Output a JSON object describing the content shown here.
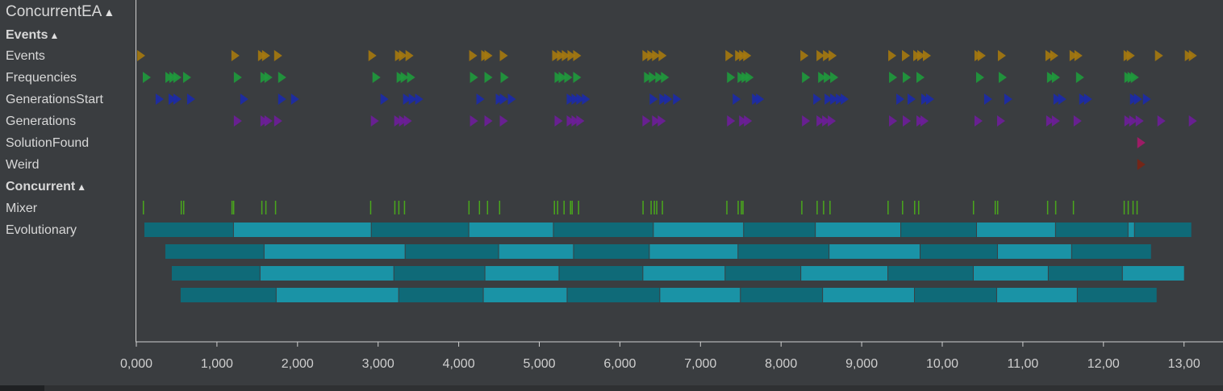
{
  "rows": [
    {
      "label": "ConcurrentEA",
      "collapse": "▲",
      "kind": "root"
    },
    {
      "label": "Events",
      "collapse": "▲",
      "kind": "group"
    },
    {
      "label": "Events",
      "kind": "track"
    },
    {
      "label": "Frequencies",
      "kind": "track"
    },
    {
      "label": "GenerationsStart",
      "kind": "track"
    },
    {
      "label": "Generations",
      "kind": "track"
    },
    {
      "label": "SolutionFound",
      "kind": "track"
    },
    {
      "label": "Weird",
      "kind": "track"
    },
    {
      "label": "Concurrent",
      "collapse": "▲",
      "kind": "group"
    },
    {
      "label": "Mixer",
      "kind": "track"
    },
    {
      "label": "Evolutionary",
      "kind": "track"
    }
  ],
  "colors": {
    "events": "#a6790e",
    "frequencies": "#1f9a3c",
    "generations_start": "#1c2aa8",
    "generations": "#6e1d9a",
    "solution_found": "#a8186a",
    "weird": "#7a2414",
    "mixer": "#4aa81c",
    "bar_dark": "#0f6a78",
    "bar_light": "#1a93a6"
  },
  "chart_data": {
    "type": "timeline",
    "x_range": [
      0,
      13.25
    ],
    "x_ticks": [
      {
        "value": 0,
        "label": "0,000"
      },
      {
        "value": 1,
        "label": "1,000"
      },
      {
        "value": 2,
        "label": "2,000"
      },
      {
        "value": 3,
        "label": "3,000"
      },
      {
        "value": 4,
        "label": "4,000"
      },
      {
        "value": 5,
        "label": "5,000"
      },
      {
        "value": 6,
        "label": "6,000"
      },
      {
        "value": 7,
        "label": "7,000"
      },
      {
        "value": 8,
        "label": "8,000"
      },
      {
        "value": 9,
        "label": "9,000"
      },
      {
        "value": 10,
        "label": "10,00"
      },
      {
        "value": 11,
        "label": "11,00"
      },
      {
        "value": 12,
        "label": "12,00"
      },
      {
        "value": 13,
        "label": "13,00"
      }
    ],
    "events": {
      "Events": [
        0.05,
        1.22,
        1.55,
        1.6,
        1.75,
        2.92,
        3.25,
        3.3,
        3.38,
        4.17,
        4.32,
        4.36,
        4.55,
        5.2,
        5.26,
        5.32,
        5.39,
        5.46,
        6.32,
        6.38,
        6.44,
        6.52,
        7.35,
        7.47,
        7.52,
        7.57,
        8.28,
        8.48,
        8.56,
        8.63,
        9.37,
        9.54,
        9.68,
        9.73,
        9.8,
        10.44,
        10.48,
        10.73,
        11.32,
        11.38,
        11.62,
        11.68,
        12.29,
        12.33,
        12.68,
        13.05,
        13.1
      ],
      "Frequencies": [
        0.12,
        0.4,
        0.45,
        0.5,
        0.62,
        1.25,
        1.58,
        1.63,
        1.8,
        2.97,
        3.27,
        3.32,
        3.4,
        4.18,
        4.36,
        4.56,
        5.23,
        5.28,
        5.35,
        5.46,
        6.34,
        6.4,
        6.48,
        6.55,
        7.37,
        7.5,
        7.55,
        7.6,
        8.3,
        8.5,
        8.57,
        8.65,
        9.38,
        9.55,
        9.72,
        10.46,
        10.74,
        11.34,
        11.4,
        11.7,
        12.3,
        12.34,
        12.38
      ],
      "GenerationsStart": [
        0.28,
        0.44,
        0.5,
        0.67,
        1.33,
        1.8,
        1.96,
        3.07,
        3.35,
        3.42,
        3.5,
        4.26,
        4.5,
        4.55,
        4.65,
        5.38,
        5.44,
        5.5,
        5.57,
        6.41,
        6.53,
        6.59,
        6.7,
        7.44,
        7.68,
        7.73,
        8.44,
        8.58,
        8.65,
        8.72,
        8.78,
        9.47,
        9.61,
        9.78,
        9.84,
        10.56,
        10.81,
        11.42,
        11.48,
        11.74,
        11.8,
        12.37,
        12.42,
        12.53
      ],
      "Generations": [
        1.25,
        1.58,
        1.63,
        1.75,
        2.95,
        3.24,
        3.3,
        3.36,
        4.18,
        4.36,
        4.55,
        5.23,
        5.38,
        5.44,
        5.5,
        6.32,
        6.44,
        6.51,
        7.37,
        7.52,
        7.58,
        8.3,
        8.48,
        8.55,
        8.62,
        9.38,
        9.55,
        9.72,
        9.77,
        10.44,
        10.72,
        11.33,
        11.4,
        11.67,
        12.3,
        12.36,
        12.44,
        12.71,
        13.1
      ],
      "SolutionFound": [
        12.46
      ],
      "Weird": [
        12.46
      ]
    },
    "mixer": [
      0.08,
      0.55,
      0.58,
      1.18,
      1.2,
      1.55,
      1.6,
      1.72,
      2.9,
      3.2,
      3.25,
      3.32,
      4.12,
      4.25,
      4.35,
      4.5,
      5.18,
      5.22,
      5.3,
      5.38,
      5.4,
      5.48,
      6.28,
      6.38,
      6.42,
      6.45,
      6.52,
      7.32,
      7.46,
      7.5,
      7.52,
      8.25,
      8.44,
      8.52,
      8.6,
      9.32,
      9.5,
      9.65,
      9.7,
      10.38,
      10.65,
      10.68,
      11.3,
      11.4,
      11.62,
      12.25,
      12.3,
      12.36,
      12.41
    ],
    "evolutionary_lanes": [
      [
        [
          0.1,
          1.21
        ],
        [
          1.21,
          2.92
        ],
        [
          2.92,
          4.13
        ],
        [
          4.13,
          5.18
        ],
        [
          5.18,
          6.42
        ],
        [
          6.42,
          7.54
        ],
        [
          7.54,
          8.43
        ],
        [
          8.43,
          9.49
        ],
        [
          9.49,
          10.43
        ],
        [
          10.43,
          11.41
        ],
        [
          11.41,
          12.31
        ],
        [
          12.31,
          12.39
        ],
        [
          12.39,
          13.1
        ]
      ],
      [
        [
          0.36,
          1.59
        ],
        [
          1.59,
          3.34
        ],
        [
          3.34,
          4.5
        ],
        [
          4.5,
          5.43
        ],
        [
          5.43,
          6.37
        ],
        [
          6.37,
          7.47
        ],
        [
          7.47,
          8.6
        ],
        [
          8.6,
          9.73
        ],
        [
          9.73,
          10.69
        ],
        [
          10.69,
          11.61
        ],
        [
          11.61,
          12.6
        ]
      ],
      [
        [
          0.44,
          1.54
        ],
        [
          1.54,
          3.2
        ],
        [
          3.2,
          4.33
        ],
        [
          4.33,
          5.25
        ],
        [
          5.25,
          6.29
        ],
        [
          6.29,
          7.31
        ],
        [
          7.31,
          8.25
        ],
        [
          8.25,
          9.33
        ],
        [
          9.33,
          10.39
        ],
        [
          10.39,
          11.32
        ],
        [
          11.32,
          12.24
        ],
        [
          12.24,
          13.01
        ]
      ],
      [
        [
          0.55,
          1.74
        ],
        [
          1.74,
          3.26
        ],
        [
          3.26,
          4.31
        ],
        [
          4.31,
          5.35
        ],
        [
          5.35,
          6.5
        ],
        [
          6.5,
          7.5
        ],
        [
          7.5,
          8.52
        ],
        [
          8.52,
          9.66
        ],
        [
          9.66,
          10.68
        ],
        [
          10.68,
          11.68
        ],
        [
          11.68,
          12.67
        ]
      ]
    ]
  }
}
